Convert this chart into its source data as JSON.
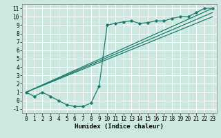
{
  "bg_color": "#cce8e0",
  "grid_color": "#ffffff",
  "line_color": "#1a7a6e",
  "curve_main_x": [
    0,
    1,
    2,
    3,
    4,
    5,
    6,
    7,
    8,
    9,
    10,
    11,
    12,
    13,
    14,
    15,
    16,
    17,
    18,
    19,
    20,
    21,
    22,
    23
  ],
  "curve_main_y": [
    1.0,
    0.5,
    1.0,
    0.5,
    0.0,
    -0.5,
    -0.7,
    -0.7,
    -0.3,
    1.7,
    9.0,
    9.2,
    9.4,
    9.5,
    9.2,
    9.3,
    9.5,
    9.5,
    9.8,
    10.0,
    10.0,
    10.5,
    11.0,
    11.0
  ],
  "line1_x": [
    0,
    23
  ],
  "line1_y": [
    1.0,
    11.0
  ],
  "line2_x": [
    0,
    23
  ],
  "line2_y": [
    1.0,
    10.5
  ],
  "line3_x": [
    0,
    23
  ],
  "line3_y": [
    1.0,
    10.0
  ],
  "xlabel": "Humidex (Indice chaleur)",
  "xlim": [
    -0.5,
    23.5
  ],
  "ylim": [
    -1.5,
    11.5
  ],
  "xticks": [
    0,
    1,
    2,
    3,
    4,
    5,
    6,
    7,
    8,
    9,
    10,
    11,
    12,
    13,
    14,
    15,
    16,
    17,
    18,
    19,
    20,
    21,
    22,
    23
  ],
  "yticks": [
    -1,
    0,
    1,
    2,
    3,
    4,
    5,
    6,
    7,
    8,
    9,
    10,
    11
  ],
  "xlabel_fontsize": 6.5,
  "tick_fontsize": 5.5
}
